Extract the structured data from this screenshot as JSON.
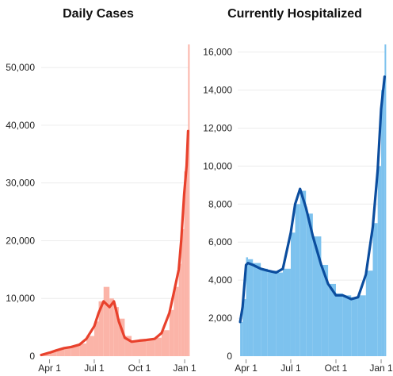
{
  "chart_data": [
    {
      "type": "bar",
      "title": "Daily Cases",
      "xlabel": "",
      "ylabel": "",
      "ylim": [
        0,
        54000
      ],
      "x_ticks": [
        {
          "label": "Apr 1",
          "date": "2020-04-01"
        },
        {
          "label": "Jul 1",
          "date": "2020-07-01"
        },
        {
          "label": "Oct 1",
          "date": "2020-10-01"
        },
        {
          "label": "Jan 1",
          "date": "2021-01-01"
        }
      ],
      "y_ticks": [
        {
          "label": "0",
          "value": 0
        },
        {
          "label": "10,000",
          "value": 10000
        },
        {
          "label": "20,000",
          "value": 20000
        },
        {
          "label": "30,000",
          "value": 30000
        },
        {
          "label": "40,000",
          "value": 40000
        },
        {
          "label": "50,000",
          "value": 50000
        }
      ],
      "grid": true,
      "bar_color": "#fbb4a8",
      "line_color": "#e8412c",
      "series": [
        {
          "kind": "bar",
          "x": [
            "2020-03-15",
            "2020-04-01",
            "2020-04-15",
            "2020-05-01",
            "2020-05-15",
            "2020-06-01",
            "2020-06-15",
            "2020-07-01",
            "2020-07-10",
            "2020-07-20",
            "2020-08-01",
            "2020-08-10",
            "2020-08-20",
            "2020-09-01",
            "2020-09-15",
            "2020-10-01",
            "2020-10-15",
            "2020-11-01",
            "2020-11-15",
            "2020-12-01",
            "2020-12-10",
            "2020-12-20",
            "2020-12-25",
            "2020-12-31",
            "2021-01-05",
            "2021-01-08"
          ],
          "values": [
            300,
            800,
            1200,
            1500,
            1800,
            2200,
            3500,
            6000,
            9500,
            12000,
            10000,
            8500,
            6500,
            3500,
            2500,
            2800,
            3000,
            3200,
            4500,
            8000,
            12000,
            16000,
            22000,
            32000,
            36000,
            54000
          ]
        },
        {
          "kind": "line",
          "x": [
            "2020-03-15",
            "2020-04-01",
            "2020-04-15",
            "2020-05-01",
            "2020-05-15",
            "2020-06-01",
            "2020-06-15",
            "2020-07-01",
            "2020-07-10",
            "2020-07-20",
            "2020-08-01",
            "2020-08-10",
            "2020-08-20",
            "2020-09-01",
            "2020-09-15",
            "2020-10-01",
            "2020-10-15",
            "2020-11-01",
            "2020-11-15",
            "2020-12-01",
            "2020-12-10",
            "2020-12-20",
            "2020-12-25",
            "2020-12-31",
            "2021-01-05",
            "2021-01-08"
          ],
          "values": [
            200,
            600,
            1000,
            1400,
            1600,
            2000,
            3000,
            5200,
            7500,
            9500,
            8500,
            9500,
            6000,
            3200,
            2500,
            2700,
            2800,
            3000,
            4000,
            7500,
            11000,
            15000,
            20000,
            28000,
            33000,
            39000
          ]
        }
      ]
    },
    {
      "type": "area",
      "title": "Currently Hospitalized",
      "xlabel": "",
      "ylabel": "",
      "ylim": [
        0,
        16400
      ],
      "x_ticks": [
        {
          "label": "Apr 1",
          "date": "2020-04-01"
        },
        {
          "label": "Jul 1",
          "date": "2020-07-01"
        },
        {
          "label": "Oct 1",
          "date": "2020-10-01"
        },
        {
          "label": "Jan 1",
          "date": "2021-01-01"
        }
      ],
      "y_ticks": [
        {
          "label": "0",
          "value": 0
        },
        {
          "label": "2,000",
          "value": 2000
        },
        {
          "label": "4,000",
          "value": 4000
        },
        {
          "label": "6,000",
          "value": 6000
        },
        {
          "label": "8,000",
          "value": 8000
        },
        {
          "label": "10,000",
          "value": 10000
        },
        {
          "label": "12,000",
          "value": 12000
        },
        {
          "label": "14,000",
          "value": 14000
        },
        {
          "label": "16,000",
          "value": 16000
        }
      ],
      "grid": true,
      "bar_color": "#7dc2ee",
      "line_color": "#0b4d9e",
      "series": [
        {
          "kind": "bar",
          "x": [
            "2020-03-20",
            "2020-03-25",
            "2020-04-01",
            "2020-04-05",
            "2020-04-15",
            "2020-05-01",
            "2020-05-15",
            "2020-06-01",
            "2020-06-15",
            "2020-07-01",
            "2020-07-10",
            "2020-07-20",
            "2020-08-01",
            "2020-08-15",
            "2020-09-01",
            "2020-09-15",
            "2020-10-01",
            "2020-10-15",
            "2020-11-01",
            "2020-11-15",
            "2020-12-01",
            "2020-12-15",
            "2020-12-25",
            "2021-01-01",
            "2021-01-08"
          ],
          "values": [
            1800,
            3000,
            5200,
            5100,
            4900,
            4600,
            4500,
            4400,
            4600,
            6500,
            8000,
            8700,
            7500,
            6300,
            4800,
            3800,
            3300,
            3200,
            3100,
            3200,
            4500,
            7000,
            10000,
            14000,
            16400
          ]
        },
        {
          "kind": "line",
          "x": [
            "2020-03-20",
            "2020-03-25",
            "2020-04-01",
            "2020-04-05",
            "2020-04-15",
            "2020-05-01",
            "2020-05-15",
            "2020-06-01",
            "2020-06-15",
            "2020-07-01",
            "2020-07-10",
            "2020-07-20",
            "2020-08-01",
            "2020-08-15",
            "2020-09-01",
            "2020-09-15",
            "2020-10-01",
            "2020-10-15",
            "2020-11-01",
            "2020-11-15",
            "2020-12-01",
            "2020-12-15",
            "2020-12-25",
            "2021-01-01",
            "2021-01-08"
          ],
          "values": [
            1800,
            2600,
            4800,
            4900,
            4800,
            4600,
            4500,
            4400,
            4600,
            6500,
            8000,
            8800,
            7800,
            6300,
            4800,
            3800,
            3200,
            3200,
            3000,
            3100,
            4300,
            6800,
            9800,
            13000,
            14700
          ]
        }
      ]
    }
  ]
}
